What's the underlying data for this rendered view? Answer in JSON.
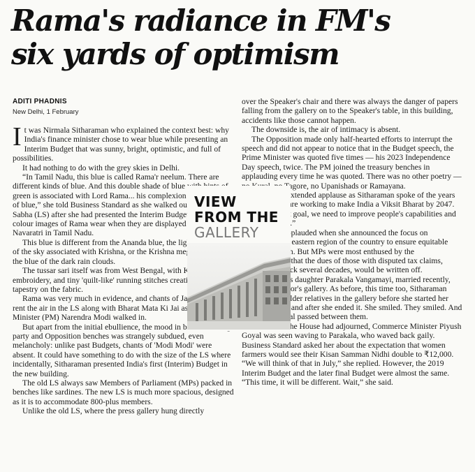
{
  "headline": {
    "line1": "Rama's radiance in FM's",
    "line2": "six yards of optimism"
  },
  "byline": {
    "author": "ADITI PHADNIS",
    "dateline": "New Delhi, 1 February"
  },
  "column_title": {
    "line1": "VIEW",
    "line2": "FROM THE",
    "line3": "GALLERY"
  },
  "col1": {
    "p1_dropcap": "I",
    "p1": "t was Nirmala Sitharaman who explained the context best: why India's finance minister chose to wear blue while presenting an Interim Budget that was sunny, bright, optimistic, and full of possibilities.",
    "p2": "It had nothing to do with the grey skies in Delhi.",
    "p3": "“In Tamil Nadu, this blue is called Rama'r neelum. There are different kinds of blue. And this double shade of blue with hints of green is associated with Lord Rama... his complexion is this shade of blue,” she told Business Standard as she walked out of the Lok Sabha (LS) after she had presented the Interim Budget. This is the colour images of Rama wear when they are displayed as dolls during Navaratri in Tamil Nadu.",
    "p4": "This blue is different from the Ananda blue, the light blue colour of the sky associated with Krishna, or the Krishna megha varnam, the blue of the dark rain clouds.",
    "p5": "The tussar sari itself was from West Bengal, with Kantha embroidery, and tiny 'quilt-like' running stitches creating a wondrous tapestry on the fabric.",
    "p6": "Rama was very much in evidence, and chants of Jai Shri Ram rent the air in the LS along with Bharat Mata Ki Jai as Prime Minister (PM) Narendra Modi walked in.",
    "p7": "But apart from the initial ebullience, the mood in both the ruling party and Opposition benches was strangely subdued, even melancholy: unlike past Budgets, chants of 'Modi Modi' were absent. It could have something to do with the size of the LS where incidentally, Sitharaman presented India's first (Interim) Budget in the new building.",
    "p8": "The old LS always saw Members of Parliament (MPs) packed in benches like sardines. The new LS is much more spacious, designed as it is to accommodate 800-plus members.",
    "p9": "Unlike the old LS, where the press gallery hung directly"
  },
  "col2": {
    "p1": "over the Speaker's chair and there was always the danger of papers falling from the gallery on to the Speaker's table, in this building, accidents like those cannot happen.",
    "p2": "The downside is, the air of intimacy is absent.",
    "p3": "The Opposition made only half-hearted efforts to interrupt the speech and did not appear to notice that in the Budget speech, the Prime Minister was quoted five times — his 2023 Independence Day speech, twice. The PM joined the treasury benches in applauding every time he was quoted. There was no other poetry — no Kural, no Tagore, no Upanishads or Ramayana.",
    "p4": "There was extended applause as Sitharaman spoke of the years to come: “We are working to make India a Viksit Bharat by 2047. To achieve that goal, we need to improve people's capabilities and empower them.”",
    "p5": "MPs also applauded when she announced the focus on developing the eastern region of the country to ensure equitable regional growth. But MPs were most enthused by the announcement that the dues of those with disputed tax claims, many going back several decades, would be written off.",
    "p6": "Sitharaman's daughter Parakala Vangamayi, married recently, was in the visitor's gallery. As before, this time too, Sitharaman bowed to her older relatives in the gallery before she started her Budget speech and after she ended it. She smiled. They smiled. And an unseen signal passed between them.",
    "p7": "Later after the House had adjourned, Commerce Minister Piyush Goyal was seen waving to Parakala, who waved back gaily. Business Standard asked her about the expectation that women farmers would see their Kisan Samman Nidhi double to ₹12,000. “We will think of that in July,” she replied. However, the 2019 Interim Budget and the later final Budget were almost the same. “This time, it will be different. Wait,” she said."
  }
}
